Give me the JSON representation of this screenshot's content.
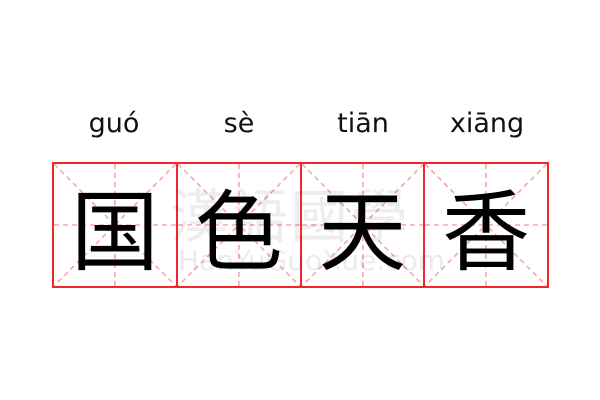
{
  "entries": [
    {
      "pinyin": "guó",
      "char": "国"
    },
    {
      "pinyin": "sè",
      "char": "色"
    },
    {
      "pinyin": "tiān",
      "char": "天"
    },
    {
      "pinyin": "xiāng",
      "char": "香"
    }
  ],
  "watermark": {
    "chinese": "漢語國學",
    "latin": "HanYuGuoXue.com"
  },
  "colors": {
    "grid": "#f0282d",
    "guide": "#f8a5a5",
    "text": "#000000"
  }
}
